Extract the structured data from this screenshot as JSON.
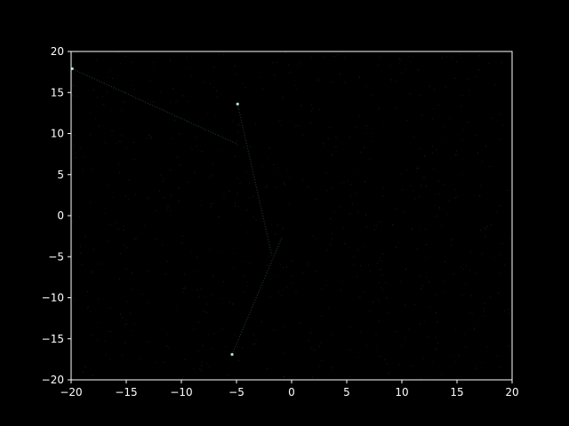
{
  "chart_data": {
    "type": "scatter",
    "title": "",
    "xlabel": "",
    "ylabel": "",
    "xlim": [
      -20,
      20
    ],
    "ylim": [
      -20,
      20
    ],
    "xticks": [
      -20,
      -15,
      -10,
      -5,
      0,
      5,
      10,
      15,
      20
    ],
    "yticks": [
      -20,
      -15,
      -10,
      -5,
      0,
      5,
      10,
      15,
      20
    ],
    "xtick_labels": [
      "−20",
      "−15",
      "−10",
      "−5",
      "0",
      "5",
      "10",
      "15",
      "20"
    ],
    "ytick_labels": [
      "−20",
      "−15",
      "−10",
      "−5",
      "0",
      "5",
      "10",
      "15",
      "20"
    ],
    "grid": false,
    "colors": {
      "background": "#000000",
      "axes": "#ffffff",
      "trail": "#1f3a2a",
      "highlight": "#a8e6d8",
      "noise": "#15281c"
    },
    "highlight_points": [
      {
        "x": -19.9,
        "y": 17.9
      },
      {
        "x": -4.9,
        "y": 13.6
      },
      {
        "x": -5.4,
        "y": -16.9
      }
    ],
    "trails": [
      {
        "from": [
          -19.9,
          17.9
        ],
        "to": [
          -4.9,
          8.7
        ]
      },
      {
        "from": [
          -4.9,
          13.6
        ],
        "to": [
          -1.8,
          -4.8
        ]
      },
      {
        "from": [
          -5.4,
          -16.9
        ],
        "to": [
          -0.9,
          -2.7
        ]
      }
    ]
  }
}
